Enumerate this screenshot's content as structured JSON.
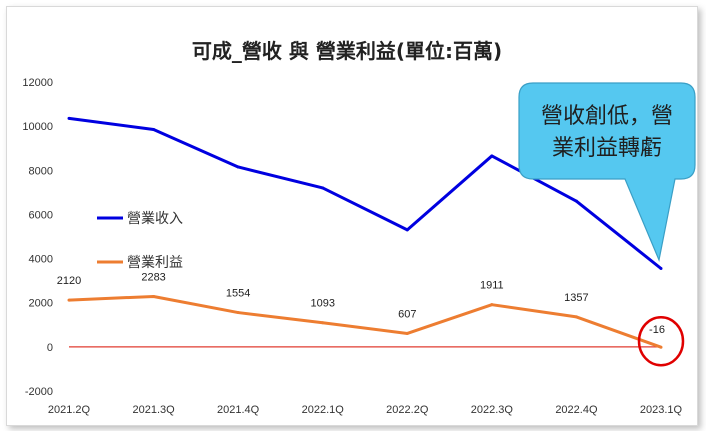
{
  "chart_data": {
    "type": "line",
    "title": "可成_營收 與 營業利益(單位:百萬)",
    "categories": [
      "2021.2Q",
      "2021.3Q",
      "2021.4Q",
      "2022.1Q",
      "2022.2Q",
      "2022.3Q",
      "2022.4Q",
      "2023.1Q"
    ],
    "ylim": [
      -2000,
      12000
    ],
    "yticks": [
      -2000,
      0,
      2000,
      4000,
      6000,
      8000,
      10000,
      12000
    ],
    "grid": false,
    "legend_position": "left",
    "series": [
      {
        "name": "營業收入",
        "color": "#0000e0",
        "values": [
          10350,
          9850,
          8150,
          7200,
          5300,
          8650,
          6600,
          3550
        ],
        "labeled": false
      },
      {
        "name": "營業利益",
        "color": "#ed7d31",
        "values": [
          2120,
          2283,
          1554,
          1093,
          607,
          1911,
          1357,
          -16
        ],
        "labeled": true
      }
    ],
    "zero_line_color": "#e03c31",
    "annotation": {
      "text_lines": [
        "營收創低，營",
        "業利益轉虧"
      ],
      "fill": "#55c8f0"
    },
    "highlight_color": "#e00000"
  }
}
